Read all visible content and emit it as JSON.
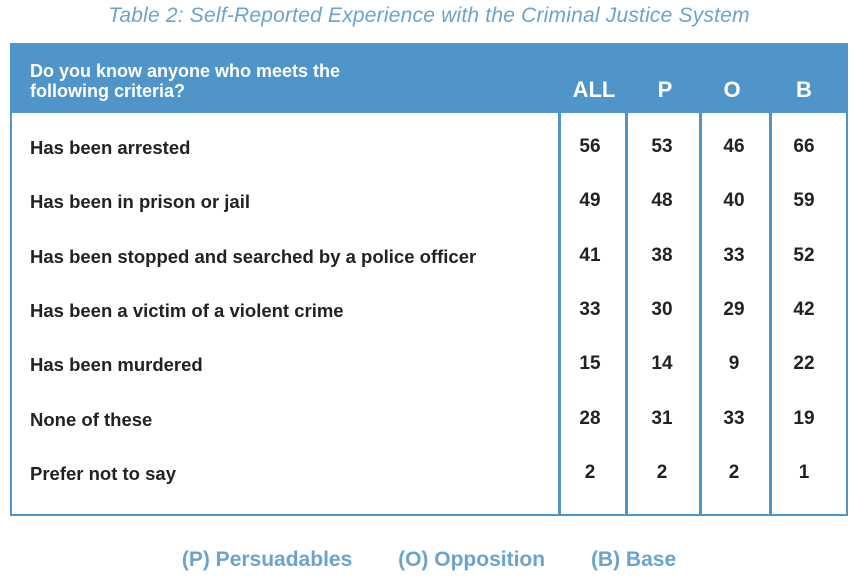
{
  "chart_data": {
    "type": "table",
    "title": "Table 2: Self-Reported Experience with the Criminal Justice System",
    "header_question": "Do you know anyone who meets the following criteria?",
    "columns": [
      "ALL",
      "P",
      "O",
      "B"
    ],
    "rows": [
      {
        "label": "Has been arrested",
        "values": [
          "56",
          "53",
          "46",
          "66"
        ]
      },
      {
        "label": "Has been in prison or jail",
        "values": [
          "49",
          "48",
          "40",
          "59"
        ]
      },
      {
        "label": "Has been stopped and searched by a police officer",
        "values": [
          "41",
          "38",
          "33",
          "52"
        ]
      },
      {
        "label": "Has been a victim of a violent crime",
        "values": [
          "33",
          "30",
          "29",
          "42"
        ]
      },
      {
        "label": "Has been murdered",
        "values": [
          "15",
          "14",
          "9",
          "22"
        ]
      },
      {
        "label": "None of these",
        "values": [
          "28",
          "31",
          "33",
          "19"
        ]
      },
      {
        "label": "Prefer not to say",
        "values": [
          "2",
          "2",
          "2",
          "1"
        ]
      }
    ],
    "legend": [
      "(P) Persuadables",
      "(O) Opposition",
      "(B) Base"
    ],
    "colors": {
      "accent": "#4f95c9",
      "title": "#6ba3cf",
      "text": "#222222"
    }
  }
}
